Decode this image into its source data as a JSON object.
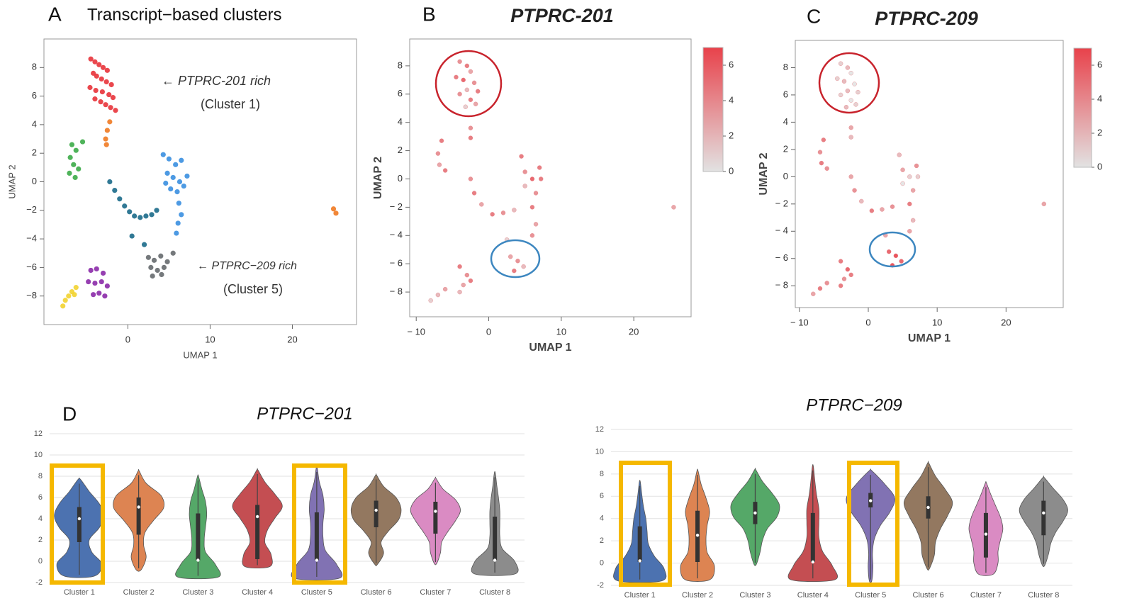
{
  "chart_data": [
    {
      "type": "scatter",
      "panel": "A",
      "title": "Transcript−based clusters",
      "x_label": "UMAP 1",
      "y_label": "UMAP 2",
      "xlim": [
        -10.2,
        27.8
      ],
      "ylim": [
        -10,
        10
      ],
      "xticks": [
        0,
        10,
        20
      ],
      "yticks": [
        {
          "value": -8,
          "label": "−8"
        },
        {
          "value": -6,
          "label": "−6"
        },
        {
          "value": -4,
          "label": "−4"
        },
        {
          "value": -2,
          "label": "−2"
        },
        0,
        2,
        4,
        6,
        8
      ],
      "annotations": [
        "← PTPRC-201 rich",
        "(Cluster 1)",
        "← PTPRC−209 rich",
        "(Cluster 5)"
      ],
      "series": [
        {
          "color": "#e8333a",
          "x": [
            -4.5,
            -4,
            -3.5,
            -3,
            -2.5,
            -4.2,
            -3.8,
            -3.2,
            -2.6,
            -2,
            -4.6,
            -3.9,
            -3.1,
            -2.3,
            -1.8,
            -4,
            -3.3,
            -2.7,
            -2.1,
            -1.5
          ],
          "y": [
            8.6,
            8.4,
            8.2,
            8.0,
            7.8,
            7.6,
            7.4,
            7.2,
            7.0,
            6.8,
            6.6,
            6.4,
            6.3,
            6.1,
            5.9,
            5.8,
            5.6,
            5.4,
            5.2,
            5.0
          ]
        },
        {
          "color": "#f07a22",
          "x": [
            -2.2,
            -2.5,
            -2.7,
            -2.6,
            25,
            25.3
          ],
          "y": [
            4.2,
            3.6,
            3.0,
            2.6,
            -1.9,
            -2.2
          ]
        },
        {
          "color": "#3cab48",
          "x": [
            -6.8,
            -6.3,
            -7,
            -6.6,
            -6.0,
            -7.1,
            -6.4,
            -5.5
          ],
          "y": [
            2.6,
            2.2,
            1.7,
            1.2,
            0.9,
            0.6,
            0.3,
            2.8
          ]
        },
        {
          "color": "#1b6a8a",
          "x": [
            -2.2,
            -1.6,
            -1,
            -0.4,
            0.2,
            0.8,
            1.5,
            2.2,
            2.9,
            3.5,
            0.5,
            2
          ],
          "y": [
            0,
            -0.6,
            -1.2,
            -1.7,
            -2.1,
            -2.4,
            -2.5,
            -2.4,
            -2.3,
            -2.0,
            -3.8,
            -4.4
          ]
        },
        {
          "color": "#3a8fe0",
          "x": [
            4.3,
            5,
            5.8,
            6.5,
            4.8,
            5.5,
            6.3,
            7.2,
            5.2,
            6,
            6.8,
            6.2,
            6.5,
            6.1,
            5.9,
            4.6
          ],
          "y": [
            1.9,
            1.6,
            1.2,
            1.5,
            0.6,
            0.3,
            0,
            0.4,
            -0.5,
            -0.7,
            -0.3,
            -1.5,
            -2.3,
            -2.9,
            -3.6,
            -0.1
          ]
        },
        {
          "color": "#666a6e",
          "x": [
            2.5,
            3.2,
            4,
            4.8,
            5.5,
            2.8,
            3.6,
            4.4,
            3,
            4.1
          ],
          "y": [
            -5.3,
            -5.5,
            -5.2,
            -5.6,
            -5.0,
            -6.0,
            -6.2,
            -6.0,
            -6.6,
            -6.5
          ]
        },
        {
          "color": "#8b2aa8",
          "x": [
            -4.5,
            -3.8,
            -3,
            -4.8,
            -4,
            -3.2,
            -2.5,
            -4.2,
            -3.5,
            -2.8
          ],
          "y": [
            -6.2,
            -6.1,
            -6.4,
            -7,
            -7.1,
            -7,
            -7.3,
            -7.9,
            -7.8,
            -8.0
          ]
        },
        {
          "color": "#f2d330",
          "x": [
            -6.3,
            -6.8,
            -7.2,
            -7.6,
            -7.9,
            -6.5
          ],
          "y": [
            -7.4,
            -7.7,
            -8.0,
            -8.3,
            -8.7,
            -7.9
          ]
        }
      ]
    },
    {
      "type": "scatter",
      "panel": "B",
      "title": "PTPRC-201",
      "x_label": "UMAP 1",
      "y_label": "UMAP 2",
      "xlim": [
        -10.9,
        27.9
      ],
      "ylim": [
        -9.75,
        9.9
      ],
      "xticks": [
        {
          "value": -10,
          "label": "− 10"
        },
        0,
        10,
        20
      ],
      "yticks": [
        {
          "value": -8,
          "label": "− 8"
        },
        {
          "value": -6,
          "label": "− 6"
        },
        {
          "value": -4,
          "label": "− 4"
        },
        {
          "value": -2,
          "label": "− 2"
        },
        0,
        2,
        4,
        6,
        8
      ],
      "clim": [
        0,
        7
      ],
      "cticks": [
        0,
        2,
        4,
        6
      ],
      "colormap": [
        "#e2e2e2",
        "#e8424b"
      ],
      "x": [
        -4,
        -3,
        -2.5,
        -4.5,
        -3.5,
        -2,
        -1.5,
        -3,
        -4,
        -2.5,
        -1.8,
        -3.2,
        -2.5,
        -2.5,
        -6.5,
        -7,
        -6.8,
        -6.0,
        -2.5,
        -2,
        -1,
        0.5,
        2,
        3.5,
        4.5,
        5,
        6,
        7,
        6.5,
        6,
        6.5,
        6.0,
        7.2,
        5,
        3,
        4,
        4.8,
        3.5,
        2.5,
        -4,
        -3,
        -3.5,
        -2.5,
        -4,
        -6,
        -7,
        -8,
        25.5
      ],
      "y": [
        8.3,
        8.0,
        7.6,
        7.2,
        7.0,
        6.8,
        6.2,
        6.3,
        6.0,
        5.6,
        5.3,
        5.1,
        3.6,
        2.9,
        2.7,
        1.8,
        1.0,
        0.6,
        0,
        -1,
        -1.8,
        -2.5,
        -2.4,
        -2.2,
        1.6,
        0.5,
        0,
        0.8,
        -1,
        -2,
        -3.2,
        -4,
        0,
        -0.5,
        -5.5,
        -5.8,
        -6.2,
        -6.5,
        -4.3,
        -6.2,
        -6.8,
        -7.5,
        -7.2,
        -8,
        -7.8,
        -8.2,
        -8.6,
        -2
      ],
      "values": [
        4,
        5,
        3,
        5,
        6,
        4,
        5,
        2,
        4,
        5,
        3,
        1,
        4,
        5,
        5,
        4,
        3,
        5,
        4,
        5,
        3,
        5,
        4,
        2,
        5,
        4,
        6,
        5,
        4,
        5,
        3,
        4,
        5,
        2,
        3,
        4,
        2,
        5,
        1,
        5,
        4,
        3,
        5,
        2,
        3,
        2,
        1,
        3
      ]
    },
    {
      "type": "scatter",
      "panel": "C",
      "title": "PTPRC-209",
      "x_label": "UMAP 1",
      "y_label": "UMAP 2",
      "xlim": [
        -10.6,
        28.3
      ],
      "ylim": [
        -9.6,
        10
      ],
      "xticks": [
        {
          "value": -10,
          "label": "− 10"
        },
        0,
        10,
        20
      ],
      "yticks": [
        {
          "value": -8,
          "label": "− 8"
        },
        {
          "value": -6,
          "label": "− 6"
        },
        {
          "value": -4,
          "label": "− 4"
        },
        {
          "value": -2,
          "label": "− 2"
        },
        0,
        2,
        4,
        6,
        8
      ],
      "clim": [
        0,
        7
      ],
      "cticks": [
        0,
        2,
        4,
        6
      ],
      "colormap": [
        "#e2e2e2",
        "#e8424b"
      ],
      "x": [
        -4,
        -3,
        -2.5,
        -4.5,
        -3.5,
        -2,
        -1.5,
        -3,
        -4,
        -2.5,
        -1.8,
        -3.2,
        -2.5,
        -2.5,
        -6.5,
        -7,
        -6.8,
        -6.0,
        -2.5,
        -2,
        -1,
        0.5,
        2,
        3.5,
        4.5,
        5,
        6,
        7,
        6.5,
        6,
        6.5,
        6.0,
        7.2,
        5,
        3,
        4,
        4.8,
        3.5,
        2.5,
        -4,
        -3,
        -3.5,
        -2.5,
        -4,
        -6,
        -7,
        -8,
        25.5
      ],
      "y": [
        8.3,
        8.0,
        7.6,
        7.2,
        7.0,
        6.8,
        6.2,
        6.3,
        6.0,
        5.6,
        5.3,
        5.1,
        3.6,
        2.9,
        2.7,
        1.8,
        1.0,
        0.6,
        0,
        -1,
        -1.8,
        -2.5,
        -2.4,
        -2.2,
        1.6,
        0.5,
        0,
        0.8,
        -1,
        -2,
        -3.2,
        -4,
        0,
        -0.5,
        -5.5,
        -5.8,
        -6.2,
        -6.5,
        -4.3,
        -6.2,
        -6.8,
        -7.5,
        -7.2,
        -8,
        -7.8,
        -8.2,
        -8.6,
        -2
      ],
      "values": [
        1,
        2,
        0,
        1,
        2,
        0,
        1,
        2,
        1,
        0,
        1,
        2,
        3,
        2,
        5,
        4,
        5,
        4,
        3,
        4,
        2,
        5,
        3,
        4,
        2,
        3,
        1,
        4,
        3,
        5,
        2,
        3,
        1,
        0,
        6,
        7,
        6,
        7,
        3,
        5,
        6,
        4,
        5,
        5,
        4,
        5,
        3,
        3
      ]
    },
    {
      "type": "violin",
      "panel": "D",
      "title": "PTPRC−201",
      "ylim": [
        -2,
        12
      ],
      "yticks": [
        -2,
        0,
        2,
        4,
        6,
        8,
        10,
        12
      ],
      "categories": [
        "Cluster 1",
        "Cluster 2",
        "Cluster 3",
        "Cluster 4",
        "Cluster 5",
        "Cluster 6",
        "Cluster 7",
        "Cluster 8"
      ],
      "violins": [
        {
          "color": "#4c72b0",
          "min": -1.4,
          "q1": 1.8,
          "median": 4.0,
          "q3": 5.1,
          "max": 7.7,
          "density": [
            0.6,
            0.9,
            0.5,
            0.4,
            0.8,
            1.0,
            0.8,
            0.4,
            0.05
          ]
        },
        {
          "color": "#dd8452",
          "min": -0.8,
          "q1": 2.5,
          "median": 5.1,
          "q3": 6.0,
          "max": 8.5,
          "density": [
            0.1,
            0.3,
            0.2,
            0.25,
            0.6,
            1.0,
            0.9,
            0.3,
            0.02
          ]
        },
        {
          "color": "#55a868",
          "min": -1.5,
          "q1": 0.1,
          "median": 0.1,
          "q3": 4.5,
          "max": 8.0,
          "density": [
            0.8,
            0.7,
            0.3,
            0.25,
            0.3,
            0.35,
            0.3,
            0.15,
            0.02
          ]
        },
        {
          "color": "#c44e52",
          "min": -0.5,
          "q1": 0.2,
          "median": 4.2,
          "q3": 5.3,
          "max": 8.6,
          "density": [
            0.5,
            0.55,
            0.3,
            0.4,
            0.7,
            1.0,
            0.7,
            0.3,
            0.02
          ]
        },
        {
          "color": "#8172b3",
          "min": -1.6,
          "q1": 0.1,
          "median": 0.1,
          "q3": 4.6,
          "max": 8.8,
          "density": [
            0.9,
            0.8,
            0.35,
            0.25,
            0.25,
            0.3,
            0.25,
            0.1,
            0.02
          ]
        },
        {
          "color": "#937860",
          "min": -0.3,
          "q1": 3.2,
          "median": 4.8,
          "q3": 5.7,
          "max": 8.1,
          "density": [
            0.05,
            0.3,
            0.2,
            0.5,
            0.9,
            1.0,
            0.8,
            0.3,
            0.02
          ]
        },
        {
          "color": "#da8bc3",
          "min": -0.2,
          "q1": 2.6,
          "median": 4.7,
          "q3": 5.6,
          "max": 7.8,
          "density": [
            0.05,
            0.2,
            0.25,
            0.5,
            0.8,
            1.0,
            0.8,
            0.3,
            0.02
          ]
        },
        {
          "color": "#8c8c8c",
          "min": -1.2,
          "q1": 0.1,
          "median": 0.1,
          "q3": 4.2,
          "max": 8.3,
          "density": [
            0.8,
            0.8,
            0.3,
            0.2,
            0.2,
            0.2,
            0.15,
            0.08,
            0.02
          ]
        }
      ]
    },
    {
      "type": "violin",
      "title": "PTPRC−209",
      "ylim": [
        -2,
        12
      ],
      "yticks": [
        -2,
        0,
        2,
        4,
        6,
        8,
        10,
        12
      ],
      "categories": [
        "Cluster 1",
        "Cluster 2",
        "Cluster 3",
        "Cluster 4",
        "Cluster 5",
        "Cluster 6",
        "Cluster 7",
        "Cluster 8"
      ],
      "violins": [
        {
          "color": "#4c72b0",
          "min": -1.6,
          "q1": 0.1,
          "median": 0.2,
          "q3": 3.3,
          "max": 7.3,
          "density": [
            0.9,
            1.0,
            0.6,
            0.35,
            0.3,
            0.25,
            0.15,
            0.08,
            0.02
          ]
        },
        {
          "color": "#dd8452",
          "min": -1.5,
          "q1": 0.1,
          "median": 2.5,
          "q3": 4.7,
          "max": 8.3,
          "density": [
            0.5,
            0.7,
            0.4,
            0.35,
            0.4,
            0.5,
            0.35,
            0.15,
            0.02
          ]
        },
        {
          "color": "#55a868",
          "min": -0.1,
          "q1": 3.5,
          "median": 4.5,
          "q3": 5.5,
          "max": 8.4,
          "density": [
            0.05,
            0.2,
            0.3,
            0.5,
            0.9,
            1.0,
            0.7,
            0.3,
            0.02
          ]
        },
        {
          "color": "#c44e52",
          "min": -1.5,
          "q1": 0.1,
          "median": 0.1,
          "q3": 4.5,
          "max": 8.7,
          "density": [
            0.9,
            0.8,
            0.4,
            0.25,
            0.25,
            0.25,
            0.15,
            0.08,
            0.02
          ]
        },
        {
          "color": "#8172b3",
          "min": -1.6,
          "q1": 5.0,
          "median": 5.6,
          "q3": 6.3,
          "max": 8.3,
          "density": [
            0.05,
            0.1,
            0.08,
            0.15,
            0.4,
            0.8,
            1.0,
            0.6,
            0.05
          ]
        },
        {
          "color": "#937860",
          "min": -0.5,
          "q1": 4.0,
          "median": 5.0,
          "q3": 6.0,
          "max": 9.0,
          "density": [
            0.05,
            0.25,
            0.3,
            0.5,
            0.8,
            1.0,
            0.7,
            0.3,
            0.02
          ]
        },
        {
          "color": "#da8bc3",
          "min": -1.0,
          "q1": 0.5,
          "median": 2.6,
          "q3": 4.5,
          "max": 7.2,
          "density": [
            0.3,
            0.5,
            0.5,
            0.6,
            0.7,
            0.6,
            0.4,
            0.2,
            0.02
          ]
        },
        {
          "color": "#8c8c8c",
          "min": -0.2,
          "q1": 2.5,
          "median": 4.5,
          "q3": 5.6,
          "max": 7.7,
          "density": [
            0.05,
            0.2,
            0.3,
            0.5,
            0.8,
            1.0,
            0.8,
            0.4,
            0.02
          ]
        }
      ]
    }
  ]
}
